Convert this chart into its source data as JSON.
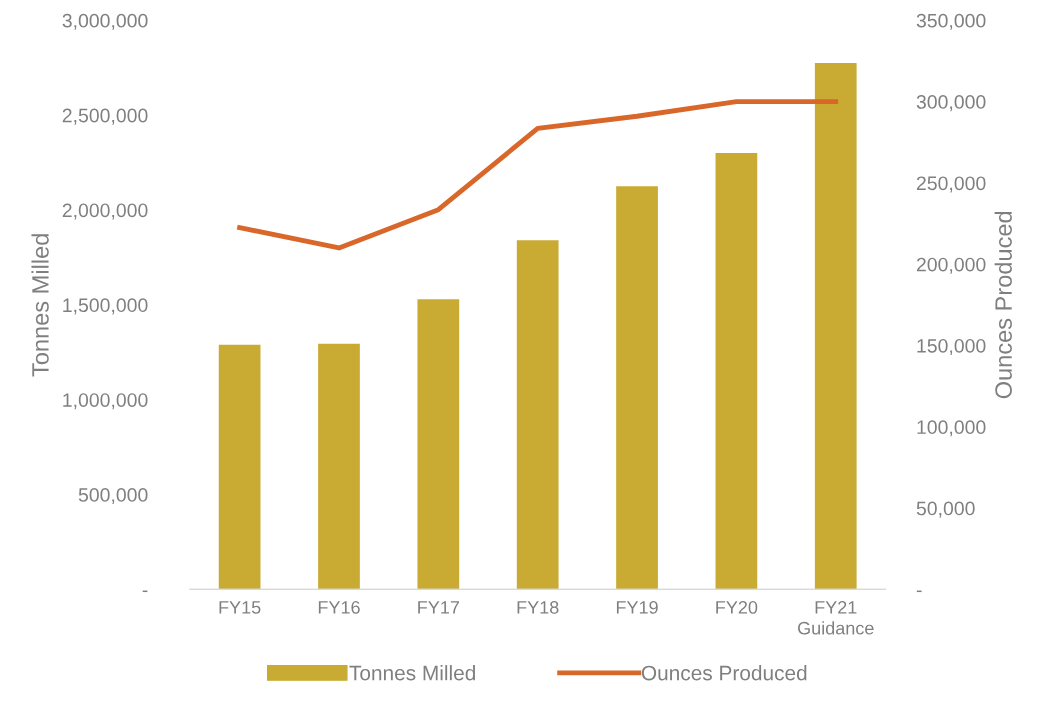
{
  "chart_data": {
    "type": "bar",
    "categories": [
      "FY15",
      "FY16",
      "FY17",
      "FY18",
      "FY19",
      "FY20",
      "FY21\nGuidance"
    ],
    "ylabel": "Tonnes Milled",
    "y2label": "Ounces Produced",
    "series": [
      {
        "name": "Tonnes Milled",
        "color": "#c9aa33",
        "values": [
          1290000,
          1295000,
          1530000,
          1840000,
          2125000,
          2300000,
          2775000
        ]
      },
      {
        "name": "Ounces Produced",
        "type": "line",
        "axis": "y2",
        "color": "#d9672a",
        "values": [
          222500,
          210000,
          233500,
          283500,
          291000,
          300000,
          300000
        ]
      }
    ],
    "ylim": [
      0,
      3000000
    ],
    "yticks": [
      {
        "value": 0,
        "label": "-"
      },
      {
        "value": 500000,
        "label": "500,000"
      },
      {
        "value": 1000000,
        "label": "1,000,000"
      },
      {
        "value": 1500000,
        "label": "1,500,000"
      },
      {
        "value": 2000000,
        "label": "2,000,000"
      },
      {
        "value": 2500000,
        "label": "2,500,000"
      },
      {
        "value": 3000000,
        "label": "3,000,000"
      }
    ],
    "y2lim": [
      0,
      350000
    ],
    "y2ticks": [
      {
        "value": 0,
        "label": "-"
      },
      {
        "value": 50000,
        "label": "50,000"
      },
      {
        "value": 100000,
        "label": "100,000"
      },
      {
        "value": 150000,
        "label": "150,000"
      },
      {
        "value": 200000,
        "label": "200,000"
      },
      {
        "value": 250000,
        "label": "250,000"
      },
      {
        "value": 300000,
        "label": "300,000"
      },
      {
        "value": 350000,
        "label": "350,000"
      }
    ],
    "grid": false,
    "legend": "bottom",
    "marker": "none",
    "line_style": "solid"
  }
}
